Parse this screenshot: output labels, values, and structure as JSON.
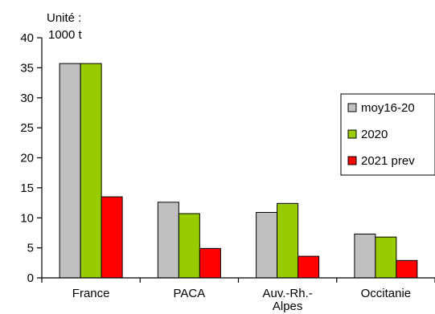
{
  "chart_data": {
    "type": "bar",
    "unit_label_line1": "Unité :",
    "unit_label_line2": "1000 t",
    "categories": [
      {
        "line1": "France",
        "line2": ""
      },
      {
        "line1": "PACA",
        "line2": ""
      },
      {
        "line1": "Auv.-Rh.-",
        "line2": "Alpes"
      },
      {
        "line1": "Occitanie",
        "line2": ""
      }
    ],
    "series": [
      {
        "name": "moy16-20",
        "color": "#c0c0c0",
        "values": [
          35.7,
          12.6,
          10.9,
          7.3
        ]
      },
      {
        "name": "2020",
        "color": "#99cc00",
        "values": [
          35.7,
          10.7,
          12.4,
          6.8
        ]
      },
      {
        "name": "2021 prev",
        "color": "#ff0000",
        "values": [
          13.5,
          4.9,
          3.6,
          2.9
        ]
      }
    ],
    "ylim": [
      0,
      40
    ],
    "yticks": [
      0,
      5,
      10,
      15,
      20,
      25,
      30,
      35,
      40
    ],
    "grid": false,
    "legend_position": "right"
  }
}
